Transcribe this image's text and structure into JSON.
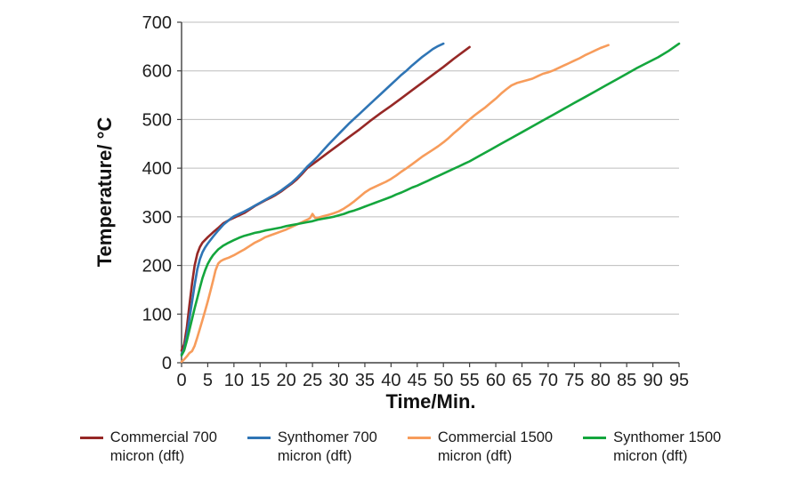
{
  "chart_data": {
    "type": "line",
    "title": "",
    "xlabel": "Time/Min.",
    "ylabel": "Temperature/ °C",
    "xlim": [
      0,
      95
    ],
    "ylim": [
      0,
      700
    ],
    "x_ticks": [
      0,
      5,
      10,
      15,
      20,
      25,
      30,
      35,
      40,
      45,
      50,
      55,
      60,
      65,
      70,
      75,
      80,
      85,
      90,
      95
    ],
    "y_ticks": [
      0,
      100,
      200,
      300,
      400,
      500,
      600,
      700
    ],
    "grid": "horizontal",
    "legend_position": "bottom",
    "series": [
      {
        "name": "Commercial 700 micron (dft)",
        "label_lines": [
          "Commercial 700",
          "micron (dft)"
        ],
        "color": "#962826",
        "points": [
          [
            0,
            25
          ],
          [
            0.5,
            38
          ],
          [
            1,
            72
          ],
          [
            1.5,
            118
          ],
          [
            2,
            163
          ],
          [
            2.5,
            200
          ],
          [
            3,
            224
          ],
          [
            3.5,
            238
          ],
          [
            4,
            247
          ],
          [
            5,
            258
          ],
          [
            6,
            268
          ],
          [
            7,
            277
          ],
          [
            8,
            287
          ],
          [
            9,
            293
          ],
          [
            10,
            298
          ],
          [
            11,
            303
          ],
          [
            12,
            308
          ],
          [
            13,
            315
          ],
          [
            14,
            322
          ],
          [
            15,
            328
          ],
          [
            16,
            334
          ],
          [
            17,
            339
          ],
          [
            18,
            345
          ],
          [
            19,
            352
          ],
          [
            20,
            360
          ],
          [
            21,
            368
          ],
          [
            22,
            377
          ],
          [
            23,
            388
          ],
          [
            24,
            400
          ],
          [
            26,
            416
          ],
          [
            28,
            432
          ],
          [
            30,
            448
          ],
          [
            32,
            464
          ],
          [
            34,
            480
          ],
          [
            36,
            497
          ],
          [
            38,
            513
          ],
          [
            40,
            528
          ],
          [
            42,
            544
          ],
          [
            44,
            560
          ],
          [
            46,
            576
          ],
          [
            48,
            592
          ],
          [
            50,
            608
          ],
          [
            52,
            625
          ],
          [
            54,
            641
          ],
          [
            55,
            649
          ]
        ]
      },
      {
        "name": "Synthomer 700 micron (dft)",
        "label_lines": [
          "Synthomer 700",
          "micron (dft)"
        ],
        "color": "#2F75B5",
        "points": [
          [
            0,
            18
          ],
          [
            0.5,
            28
          ],
          [
            1,
            55
          ],
          [
            1.5,
            90
          ],
          [
            2,
            125
          ],
          [
            2.5,
            160
          ],
          [
            3,
            192
          ],
          [
            3.5,
            213
          ],
          [
            4,
            227
          ],
          [
            4.5,
            237
          ],
          [
            5,
            245
          ],
          [
            6,
            259
          ],
          [
            7,
            272
          ],
          [
            8,
            284
          ],
          [
            9,
            293
          ],
          [
            10,
            301
          ],
          [
            11,
            306
          ],
          [
            12,
            311
          ],
          [
            13,
            317
          ],
          [
            14,
            323
          ],
          [
            15,
            329
          ],
          [
            16,
            335
          ],
          [
            17,
            341
          ],
          [
            18,
            347
          ],
          [
            19,
            354
          ],
          [
            20,
            362
          ],
          [
            21,
            370
          ],
          [
            22,
            380
          ],
          [
            23,
            391
          ],
          [
            24,
            403
          ],
          [
            25,
            413
          ],
          [
            26,
            424
          ],
          [
            27,
            436
          ],
          [
            28,
            448
          ],
          [
            29,
            459
          ],
          [
            30,
            470
          ],
          [
            31,
            481
          ],
          [
            32,
            492
          ],
          [
            33,
            502
          ],
          [
            34,
            512
          ],
          [
            35,
            522
          ],
          [
            36,
            532
          ],
          [
            37,
            542
          ],
          [
            38,
            552
          ],
          [
            39,
            562
          ],
          [
            40,
            572
          ],
          [
            41,
            582
          ],
          [
            42,
            592
          ],
          [
            43,
            601
          ],
          [
            44,
            611
          ],
          [
            45,
            620
          ],
          [
            46,
            629
          ],
          [
            47,
            637
          ],
          [
            48,
            645
          ],
          [
            49,
            651
          ],
          [
            50,
            656
          ]
        ]
      },
      {
        "name": "Commercial 1500 micron (dft)",
        "label_lines": [
          "Commercial 1500",
          "micron (dft)"
        ],
        "color": "#F79C5B",
        "points": [
          [
            0,
            2
          ],
          [
            0.5,
            7
          ],
          [
            1,
            13
          ],
          [
            1.5,
            20
          ],
          [
            2,
            24
          ],
          [
            2.5,
            35
          ],
          [
            3,
            52
          ],
          [
            3.5,
            70
          ],
          [
            4,
            88
          ],
          [
            4.5,
            107
          ],
          [
            5,
            126
          ],
          [
            5.5,
            147
          ],
          [
            6,
            168
          ],
          [
            6.5,
            190
          ],
          [
            7,
            204
          ],
          [
            7.5,
            209
          ],
          [
            8,
            212
          ],
          [
            9,
            216
          ],
          [
            10,
            221
          ],
          [
            11,
            227
          ],
          [
            12,
            233
          ],
          [
            13,
            240
          ],
          [
            14,
            247
          ],
          [
            15,
            252
          ],
          [
            16,
            258
          ],
          [
            17,
            262
          ],
          [
            18,
            266
          ],
          [
            19,
            270
          ],
          [
            20,
            274
          ],
          [
            21,
            279
          ],
          [
            22,
            284
          ],
          [
            23,
            289
          ],
          [
            24,
            294
          ],
          [
            24.5,
            297
          ],
          [
            25,
            306
          ],
          [
            25.5,
            298
          ],
          [
            26,
            298
          ],
          [
            27,
            301
          ],
          [
            28,
            304
          ],
          [
            29,
            307
          ],
          [
            30,
            311
          ],
          [
            31,
            317
          ],
          [
            32,
            324
          ],
          [
            33,
            332
          ],
          [
            34,
            341
          ],
          [
            35,
            350
          ],
          [
            36,
            357
          ],
          [
            37,
            362
          ],
          [
            38,
            367
          ],
          [
            39,
            372
          ],
          [
            40,
            378
          ],
          [
            41,
            385
          ],
          [
            42,
            393
          ],
          [
            43,
            400
          ],
          [
            44,
            408
          ],
          [
            45,
            416
          ],
          [
            46,
            424
          ],
          [
            47,
            431
          ],
          [
            48,
            438
          ],
          [
            49,
            445
          ],
          [
            50,
            453
          ],
          [
            51,
            462
          ],
          [
            52,
            472
          ],
          [
            53,
            481
          ],
          [
            54,
            491
          ],
          [
            55,
            500
          ],
          [
            56,
            509
          ],
          [
            57,
            517
          ],
          [
            58,
            525
          ],
          [
            59,
            534
          ],
          [
            60,
            543
          ],
          [
            61,
            553
          ],
          [
            62,
            562
          ],
          [
            63,
            570
          ],
          [
            64,
            575
          ],
          [
            65,
            578
          ],
          [
            66,
            581
          ],
          [
            67,
            584
          ],
          [
            68,
            589
          ],
          [
            69,
            594
          ],
          [
            70,
            597
          ],
          [
            71,
            601
          ],
          [
            72,
            606
          ],
          [
            73,
            611
          ],
          [
            74,
            616
          ],
          [
            75,
            621
          ],
          [
            76,
            626
          ],
          [
            77,
            632
          ],
          [
            78,
            637
          ],
          [
            79,
            642
          ],
          [
            80,
            647
          ],
          [
            81,
            651
          ],
          [
            81.5,
            653
          ]
        ]
      },
      {
        "name": "Synthomer 1500 micron (dft)",
        "label_lines": [
          "Synthomer 1500",
          "micron (dft)"
        ],
        "color": "#14A63D",
        "points": [
          [
            0,
            15
          ],
          [
            0.5,
            25
          ],
          [
            1,
            45
          ],
          [
            1.5,
            67
          ],
          [
            2,
            90
          ],
          [
            2.5,
            112
          ],
          [
            3,
            133
          ],
          [
            3.5,
            154
          ],
          [
            4,
            174
          ],
          [
            4.5,
            190
          ],
          [
            5,
            203
          ],
          [
            5.5,
            213
          ],
          [
            6,
            221
          ],
          [
            6.5,
            227
          ],
          [
            7,
            233
          ],
          [
            8,
            241
          ],
          [
            9,
            247
          ],
          [
            10,
            252
          ],
          [
            11,
            257
          ],
          [
            12,
            261
          ],
          [
            13,
            264
          ],
          [
            14,
            267
          ],
          [
            15,
            269
          ],
          [
            16,
            272
          ],
          [
            17,
            274
          ],
          [
            18,
            276
          ],
          [
            19,
            278
          ],
          [
            20,
            281
          ],
          [
            21,
            283
          ],
          [
            22,
            285
          ],
          [
            23,
            287
          ],
          [
            24,
            289
          ],
          [
            25,
            291
          ],
          [
            26,
            294
          ],
          [
            27,
            296
          ],
          [
            28,
            298
          ],
          [
            29,
            300
          ],
          [
            30,
            303
          ],
          [
            31,
            306
          ],
          [
            32,
            310
          ],
          [
            33,
            313
          ],
          [
            34,
            317
          ],
          [
            35,
            321
          ],
          [
            36,
            325
          ],
          [
            37,
            329
          ],
          [
            38,
            333
          ],
          [
            39,
            337
          ],
          [
            40,
            341
          ],
          [
            41,
            346
          ],
          [
            42,
            350
          ],
          [
            43,
            355
          ],
          [
            44,
            360
          ],
          [
            45,
            364
          ],
          [
            46,
            369
          ],
          [
            47,
            374
          ],
          [
            48,
            379
          ],
          [
            49,
            384
          ],
          [
            50,
            389
          ],
          [
            51,
            394
          ],
          [
            52,
            399
          ],
          [
            53,
            404
          ],
          [
            54,
            409
          ],
          [
            55,
            414
          ],
          [
            57,
            426
          ],
          [
            59,
            438
          ],
          [
            61,
            450
          ],
          [
            63,
            462
          ],
          [
            65,
            474
          ],
          [
            67,
            486
          ],
          [
            69,
            498
          ],
          [
            71,
            510
          ],
          [
            73,
            522
          ],
          [
            75,
            534
          ],
          [
            77,
            546
          ],
          [
            79,
            558
          ],
          [
            81,
            570
          ],
          [
            83,
            582
          ],
          [
            85,
            594
          ],
          [
            87,
            606
          ],
          [
            89,
            617
          ],
          [
            91,
            628
          ],
          [
            93,
            641
          ],
          [
            95,
            656
          ]
        ]
      }
    ]
  },
  "colors": {
    "grid": "#BDBDBD",
    "axis": "#404040",
    "tick_text": "#1F1F1F",
    "title_text": "#111111",
    "background": "#FFFFFF"
  }
}
